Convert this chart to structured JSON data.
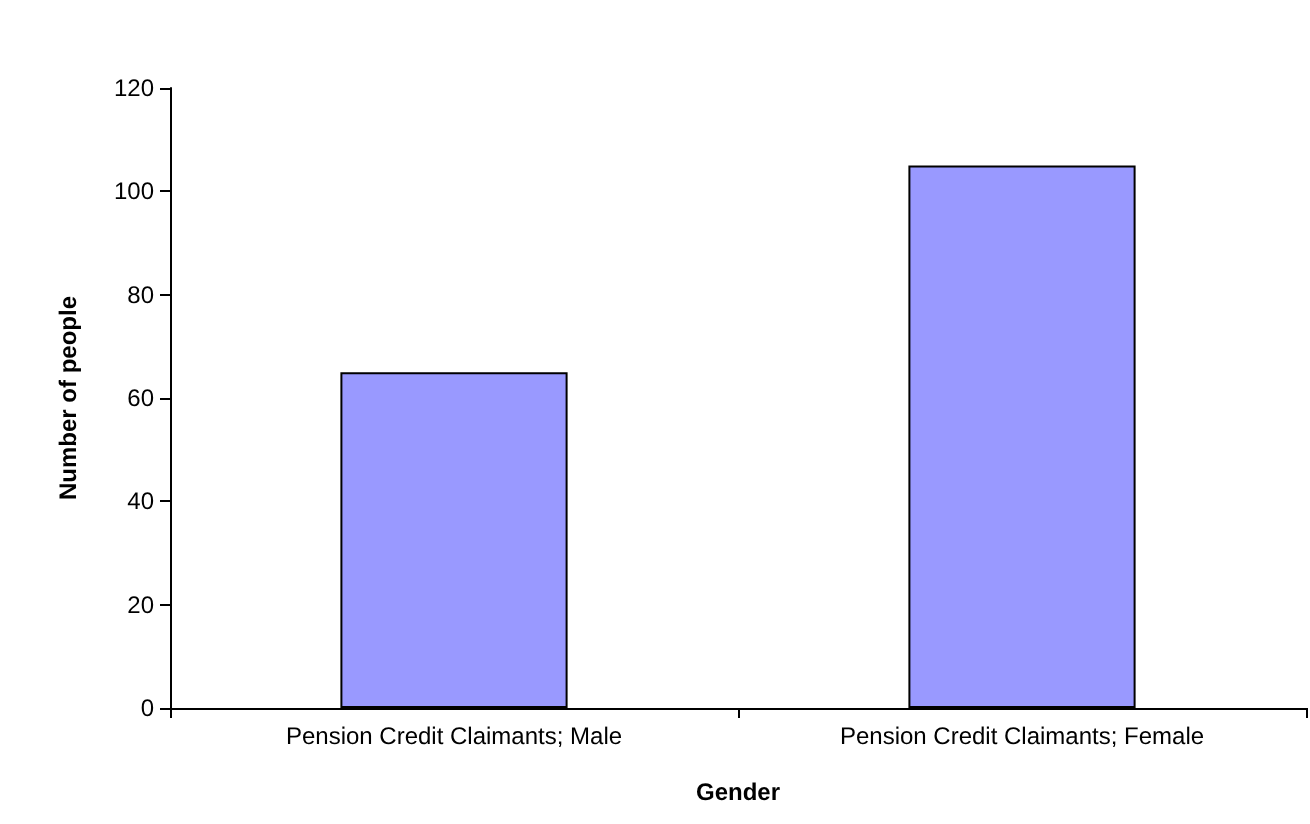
{
  "chart_data": {
    "type": "bar",
    "categories": [
      "Pension Credit Claimants; Male",
      "Pension Credit Claimants; Female"
    ],
    "values": [
      65,
      105
    ],
    "color": "#9999ff",
    "xlabel": "Gender",
    "ylabel": "Number of people",
    "ylim": [
      0,
      120
    ],
    "yticks": [
      0,
      20,
      40,
      60,
      80,
      100,
      120
    ],
    "grid": false
  }
}
